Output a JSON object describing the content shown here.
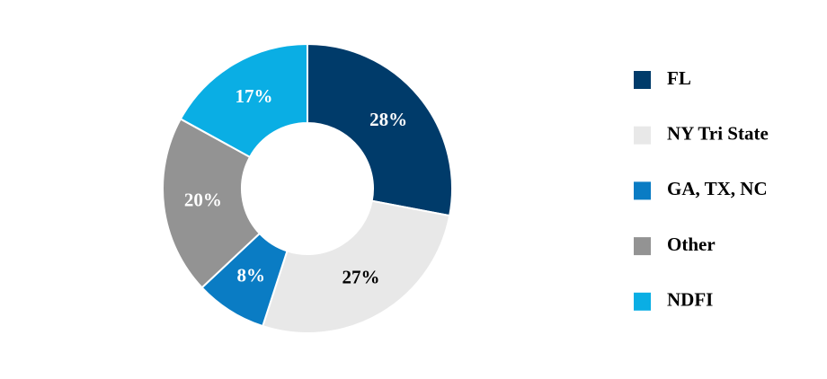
{
  "chart_data": {
    "type": "donut",
    "categories": [
      "FL",
      "NY Tri State",
      "GA, TX, NC",
      "Other",
      "NDFI"
    ],
    "values": [
      28,
      27,
      8,
      20,
      17
    ],
    "value_labels": [
      "28%",
      "27%",
      "8%",
      "20%",
      "17%"
    ],
    "colors": [
      "#003b6a",
      "#e8e8e8",
      "#0a7cc4",
      "#939393",
      "#0aaee4"
    ],
    "legend": "right"
  }
}
